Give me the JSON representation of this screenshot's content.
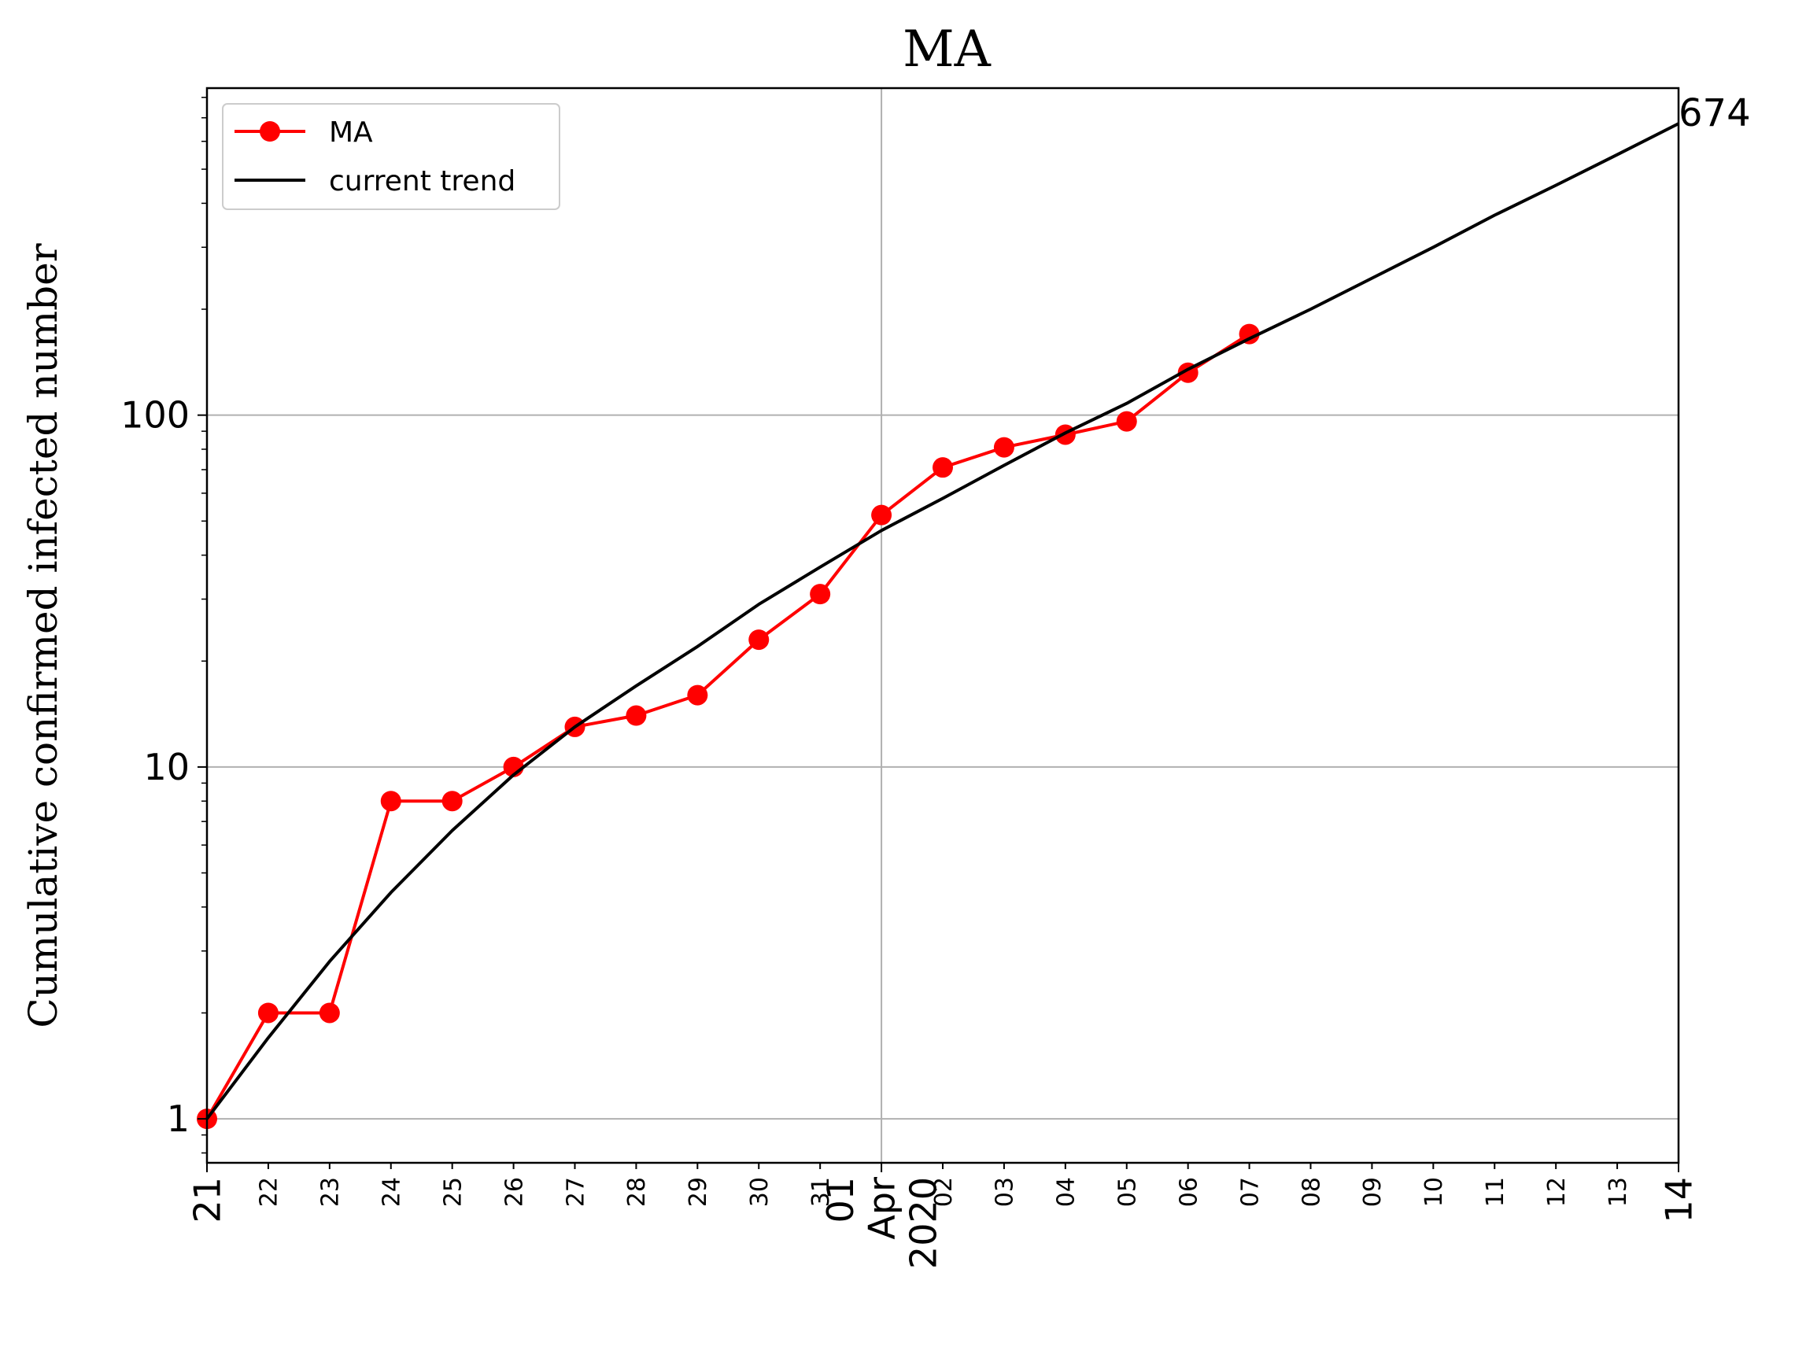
{
  "chart_data": {
    "type": "line",
    "title": "MA",
    "xlabel": "",
    "ylabel": "Cumulative confirmed infected number",
    "yscale": "log",
    "ylim": [
      0.75,
      850
    ],
    "xlim": [
      "2020-03-21",
      "2020-04-14"
    ],
    "grid": true,
    "legend_position": "top-left",
    "y_ticks": [
      "1",
      "10",
      "100"
    ],
    "x_ticks": [
      {
        "date": "2020-03-21",
        "label": "21",
        "major": true
      },
      {
        "date": "2020-03-22",
        "label": "22",
        "major": false
      },
      {
        "date": "2020-03-23",
        "label": "23",
        "major": false
      },
      {
        "date": "2020-03-24",
        "label": "24",
        "major": false
      },
      {
        "date": "2020-03-25",
        "label": "25",
        "major": false
      },
      {
        "date": "2020-03-26",
        "label": "26",
        "major": false
      },
      {
        "date": "2020-03-27",
        "label": "27",
        "major": false
      },
      {
        "date": "2020-03-28",
        "label": "28",
        "major": false
      },
      {
        "date": "2020-03-29",
        "label": "29",
        "major": false
      },
      {
        "date": "2020-03-30",
        "label": "30",
        "major": false
      },
      {
        "date": "2020-03-31",
        "label": "31",
        "major": false
      },
      {
        "date": "2020-04-01",
        "label": "01\nApr\n2020",
        "major": true
      },
      {
        "date": "2020-04-02",
        "label": "02",
        "major": false
      },
      {
        "date": "2020-04-03",
        "label": "03",
        "major": false
      },
      {
        "date": "2020-04-04",
        "label": "04",
        "major": false
      },
      {
        "date": "2020-04-05",
        "label": "05",
        "major": false
      },
      {
        "date": "2020-04-06",
        "label": "06",
        "major": false
      },
      {
        "date": "2020-04-07",
        "label": "07",
        "major": false
      },
      {
        "date": "2020-04-08",
        "label": "08",
        "major": false
      },
      {
        "date": "2020-04-09",
        "label": "09",
        "major": false
      },
      {
        "date": "2020-04-10",
        "label": "10",
        "major": false
      },
      {
        "date": "2020-04-11",
        "label": "11",
        "major": false
      },
      {
        "date": "2020-04-12",
        "label": "12",
        "major": false
      },
      {
        "date": "2020-04-13",
        "label": "13",
        "major": false
      },
      {
        "date": "2020-04-14",
        "label": "14",
        "major": true
      }
    ],
    "series": [
      {
        "name": "MA",
        "color": "#ff0000",
        "marker": "circle",
        "x": [
          "2020-03-21",
          "2020-03-22",
          "2020-03-23",
          "2020-03-24",
          "2020-03-25",
          "2020-03-26",
          "2020-03-27",
          "2020-03-28",
          "2020-03-29",
          "2020-03-30",
          "2020-03-31",
          "2020-04-01",
          "2020-04-02",
          "2020-04-03",
          "2020-04-04",
          "2020-04-05",
          "2020-04-06",
          "2020-04-07"
        ],
        "y": [
          1,
          2,
          2,
          8,
          8,
          10,
          13,
          14,
          16,
          23,
          31,
          52,
          71,
          81,
          88,
          96,
          132,
          170
        ]
      },
      {
        "name": "current trend",
        "color": "#000000",
        "marker": "none",
        "x": [
          "2020-03-21",
          "2020-03-22",
          "2020-03-23",
          "2020-03-24",
          "2020-03-25",
          "2020-03-26",
          "2020-03-27",
          "2020-03-28",
          "2020-03-29",
          "2020-03-30",
          "2020-03-31",
          "2020-04-01",
          "2020-04-02",
          "2020-04-03",
          "2020-04-04",
          "2020-04-05",
          "2020-04-06",
          "2020-04-07",
          "2020-04-08",
          "2020-04-09",
          "2020-04-10",
          "2020-04-11",
          "2020-04-12",
          "2020-04-13",
          "2020-04-14"
        ],
        "y": [
          1,
          1.7,
          2.8,
          4.4,
          6.6,
          9.5,
          13,
          17,
          22,
          29,
          37,
          47,
          58,
          72,
          89,
          108,
          135,
          165,
          200,
          245,
          300,
          370,
          450,
          550,
          674
        ]
      }
    ],
    "annotations": [
      {
        "text": "674"
      }
    ]
  }
}
